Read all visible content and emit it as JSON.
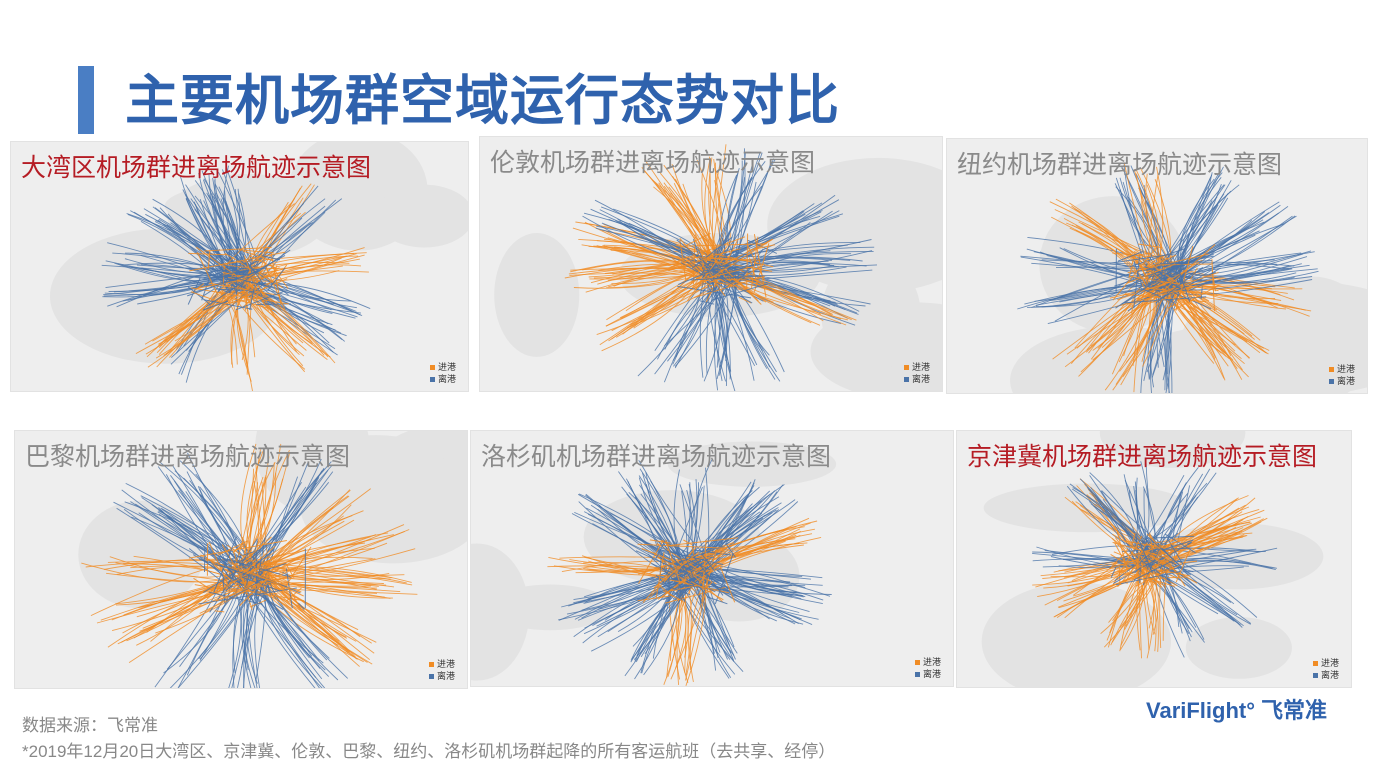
{
  "page": {
    "title": "主要机场群空域运行态势对比"
  },
  "colors": {
    "arrival": "#f08c25",
    "departure": "#4a73a8",
    "title_blue": "#2f62ad",
    "red_title": "#b51c24"
  },
  "legend": {
    "arrival_label": "进港",
    "departure_label": "离港"
  },
  "panels": [
    {
      "title": "大湾区机场群进离场航迹示意图",
      "title_color": "red"
    },
    {
      "title": "伦敦机场群进离场航迹示意图",
      "title_color": "gray"
    },
    {
      "title": "纽约机场群进离场航迹示意图",
      "title_color": "gray"
    },
    {
      "title": "巴黎机场群进离场航迹示意图",
      "title_color": "gray"
    },
    {
      "title": "洛杉矶机场群进离场航迹示意图",
      "title_color": "gray"
    },
    {
      "title": "京津冀机场群进离场航迹示意图",
      "title_color": "red"
    }
  ],
  "footer": {
    "source": "数据来源：飞常准",
    "note": "*2019年12月20日大湾区、京津冀、伦敦、巴黎、纽约、洛杉矶机场群起降的所有客运航班（去共享、经停）"
  },
  "logo": {
    "latin": "VariFlight°",
    "chinese": "飞常准"
  }
}
